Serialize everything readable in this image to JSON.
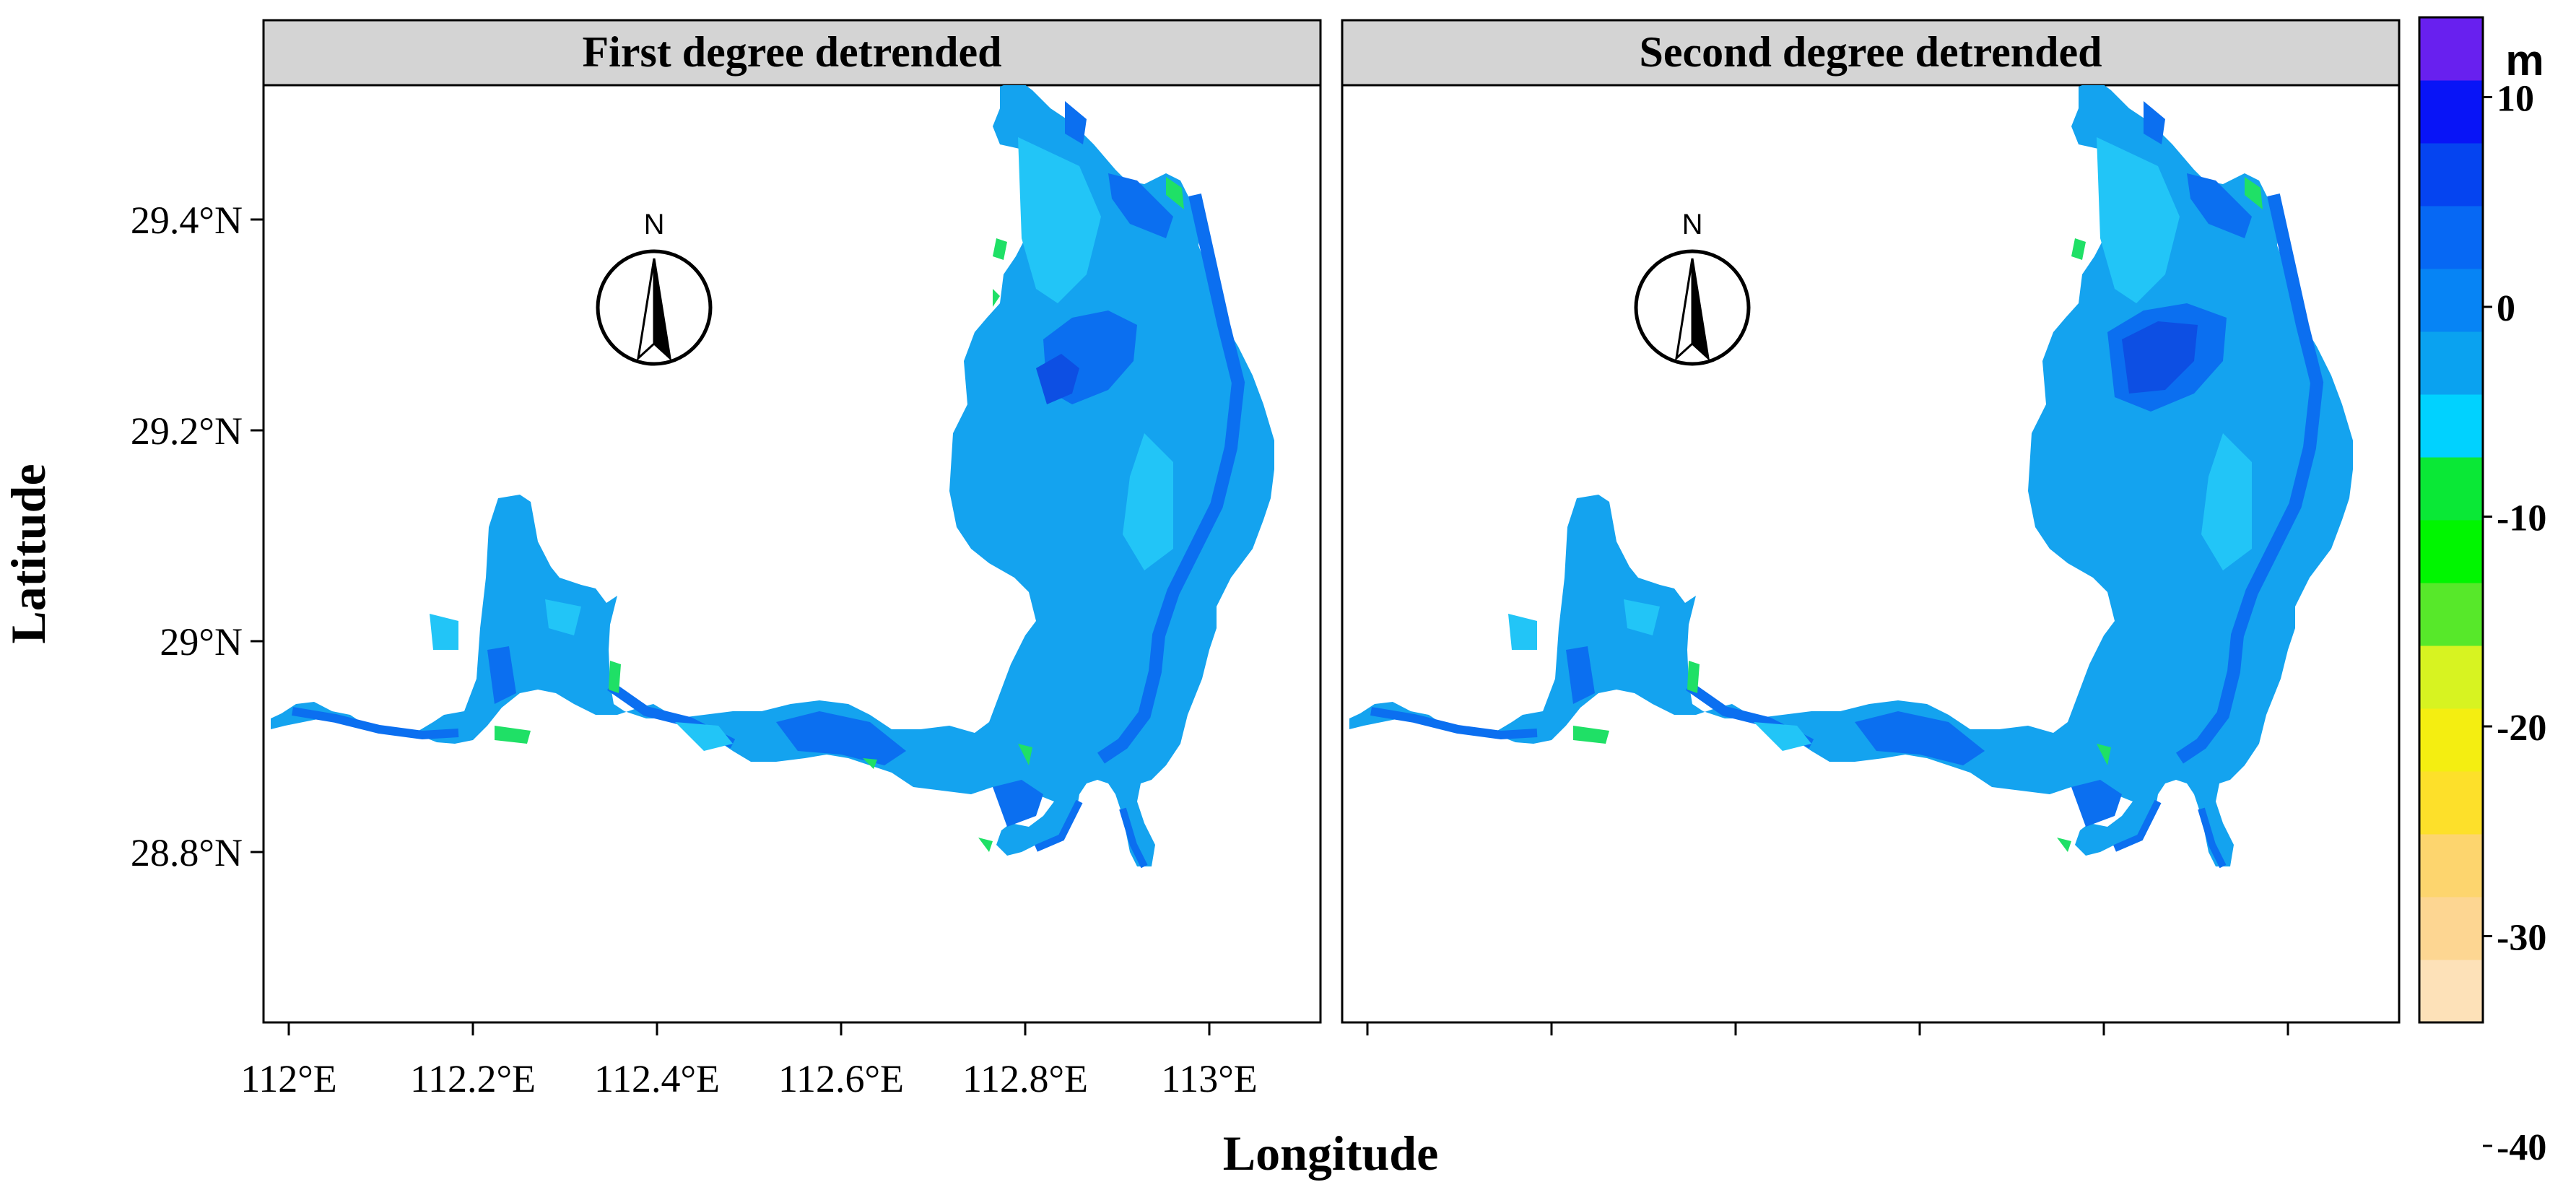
{
  "figure": {
    "panels": [
      {
        "title": "First degree detrended"
      },
      {
        "title": "Second degree detrended"
      }
    ],
    "x_axis": {
      "label": "Longitude",
      "ticks": [
        {
          "value": 112.0,
          "label": "112°E"
        },
        {
          "value": 112.2,
          "label": "112.2°E"
        },
        {
          "value": 112.4,
          "label": "112.4°E"
        },
        {
          "value": 112.6,
          "label": "112.6°E"
        },
        {
          "value": 112.8,
          "label": "112.8°E"
        },
        {
          "value": 113.0,
          "label": "113°E"
        }
      ]
    },
    "y_axis": {
      "label": "Latitude",
      "ticks": [
        {
          "value": 28.8,
          "label": "28.8°N"
        },
        {
          "value": 29.0,
          "label": "29°N"
        },
        {
          "value": 29.2,
          "label": "29.2°N"
        },
        {
          "value": 29.4,
          "label": "29.4°N"
        }
      ]
    },
    "north_arrow": {
      "label": "N"
    },
    "legend": {
      "unit": "m",
      "tick_labels": [
        "10",
        "0",
        "-10",
        "-20",
        "-30",
        "-40"
      ],
      "colors": [
        "#fde1b8",
        "#fdd692",
        "#fdd56e",
        "#fde02a",
        "#f4ee11",
        "#d7f321",
        "#57e82a",
        "#00f600",
        "#0ae836",
        "#00d2ff",
        "#0aa2f0",
        "#0684f5",
        "#0668f4",
        "#0544f0",
        "#0814f7",
        "#6820ef"
      ]
    },
    "map_colors": {
      "base": "#14a3ef",
      "light": "#22c5f7",
      "deep": "#0b6ff0",
      "darker": "#0d4fe3",
      "green": "#1fe066"
    }
  }
}
